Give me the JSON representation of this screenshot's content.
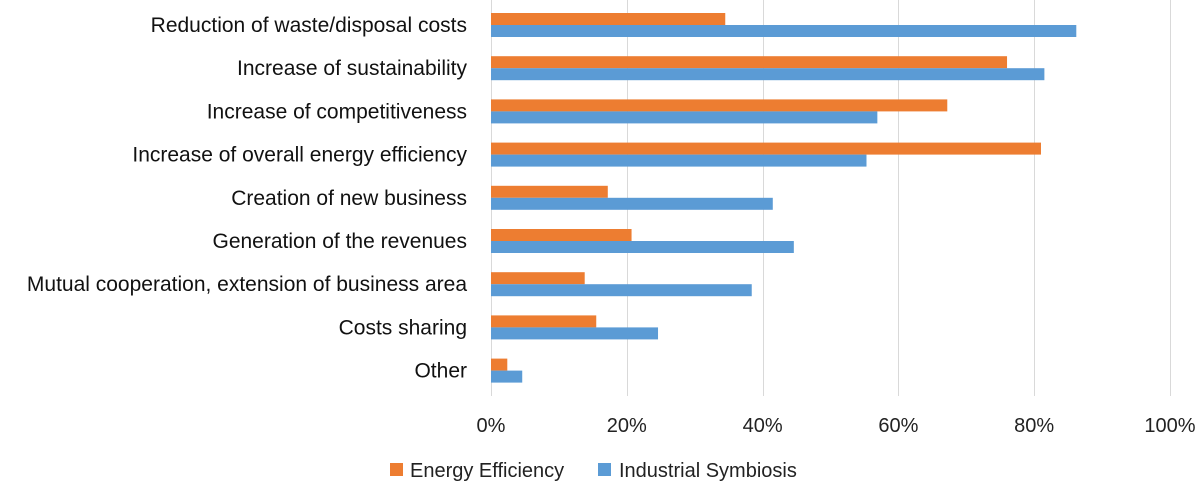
{
  "chart_data": {
    "type": "bar",
    "orientation": "horizontal",
    "title": "",
    "xlabel": "",
    "ylabel": "",
    "xlim": [
      0,
      1
    ],
    "grid": true,
    "legend_position": "bottom",
    "categories": [
      "Reduction of waste/disposal costs",
      "Increase of sustainability",
      "Increase of competitiveness",
      "Increase of overall energy efficiency",
      "Creation of new business",
      "Generation of the revenues",
      "Mutual cooperation, extension of business area",
      "Costs sharing",
      "Other"
    ],
    "tick_values": [
      0,
      0.2,
      0.4,
      0.6,
      0.8,
      1.0
    ],
    "tick_labels": [
      "0%",
      "20%",
      "40%",
      "60%",
      "80%",
      "100%"
    ],
    "series": [
      {
        "name": "Energy Efficiency",
        "color": "#ED7D31",
        "values": [
          0.345,
          0.76,
          0.672,
          0.81,
          0.172,
          0.207,
          0.138,
          0.155,
          0.024
        ]
      },
      {
        "name": "Industrial Symbiosis",
        "color": "#5B9BD5",
        "values": [
          0.862,
          0.815,
          0.569,
          0.553,
          0.415,
          0.446,
          0.384,
          0.246,
          0.046
        ]
      }
    ]
  }
}
